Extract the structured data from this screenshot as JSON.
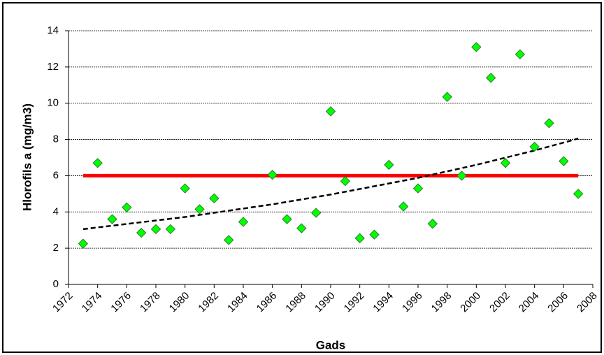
{
  "chart_data": {
    "type": "scatter",
    "xlabel": "Gads",
    "ylabel": "Hlorofils a (mg/m3)",
    "xlim": [
      1972,
      2008
    ],
    "xticks": [
      1972,
      1974,
      1976,
      1978,
      1980,
      1982,
      1984,
      1986,
      1988,
      1990,
      1992,
      1994,
      1996,
      1998,
      2000,
      2002,
      2004,
      2006,
      2008
    ],
    "ylim": [
      0,
      14
    ],
    "yticks": [
      0,
      2,
      4,
      6,
      8,
      10,
      12,
      14
    ],
    "grid": true,
    "series": [
      {
        "type": "scatter",
        "marker": "diamond",
        "color": "#00ff00",
        "x": [
          1973,
          1974,
          1975,
          1976,
          1977,
          1978,
          1979,
          1980,
          1981,
          1982,
          1983,
          1984,
          1986,
          1987,
          1988,
          1989,
          1990,
          1991,
          1992,
          1993,
          1994,
          1995,
          1996,
          1997,
          1998,
          1999,
          2000,
          2001,
          2002,
          2003,
          2004,
          2005,
          2006,
          2007
        ],
        "values": [
          2.25,
          6.7,
          3.6,
          4.25,
          2.85,
          3.05,
          3.05,
          5.3,
          4.15,
          4.75,
          2.45,
          3.45,
          6.05,
          3.6,
          3.1,
          3.95,
          9.55,
          5.7,
          2.55,
          2.75,
          6.6,
          4.3,
          5.3,
          3.35,
          10.35,
          6.0,
          13.1,
          11.4,
          6.7,
          12.7,
          7.6,
          8.9,
          6.8,
          5.0
        ]
      },
      {
        "type": "line",
        "color": "#ff0000",
        "style": "solid",
        "x": [
          1973,
          2007
        ],
        "values": [
          6,
          6
        ]
      },
      {
        "type": "line",
        "color": "#000000",
        "style": "dashed",
        "x": [
          1973,
          1980,
          1986,
          1990,
          1996,
          2000,
          2004,
          2007
        ],
        "values": [
          3.05,
          3.72,
          4.42,
          4.96,
          5.88,
          6.6,
          7.39,
          8.05
        ]
      }
    ]
  }
}
